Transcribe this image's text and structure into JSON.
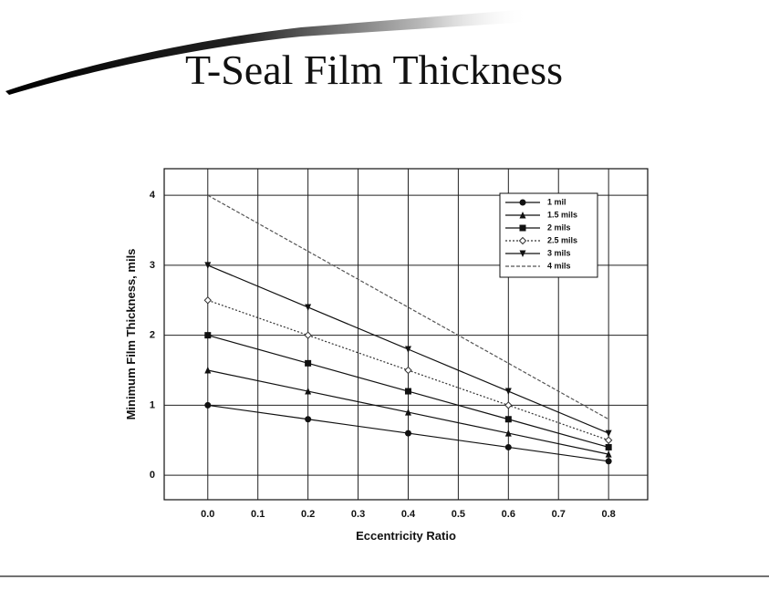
{
  "chart_data": {
    "type": "line",
    "title": "T-Seal Film Thickness",
    "xlabel": "Eccentricity Ratio",
    "ylabel": "Minimum Film Thickness, mils",
    "x": [
      0,
      0.2,
      0.4,
      0.6,
      0.8
    ],
    "series": [
      {
        "name": "1 mil",
        "color": "#111111",
        "marker": "circle",
        "dash": "solid",
        "values": [
          1,
          0.8,
          0.6,
          0.4,
          0.2
        ]
      },
      {
        "name": "1.5 mils",
        "color": "#111111",
        "marker": "triangle-up",
        "dash": "solid",
        "values": [
          1.5,
          1.2,
          0.9,
          0.6,
          0.3
        ]
      },
      {
        "name": "2 mils",
        "color": "#111111",
        "marker": "square",
        "dash": "solid",
        "values": [
          2,
          1.6,
          1.2,
          0.8,
          0.4
        ]
      },
      {
        "name": "2.5 mils",
        "color": "#333333",
        "marker": "diamond",
        "dash": "dotted",
        "values": [
          2.5,
          2,
          1.5,
          1,
          0.5
        ]
      },
      {
        "name": "3 mils",
        "color": "#111111",
        "marker": "triangle-down",
        "dash": "solid",
        "values": [
          3,
          2.4,
          1.8,
          1.2,
          0.6
        ]
      },
      {
        "name": "4 mils",
        "color": "#555555",
        "marker": "none",
        "dash": "dashed",
        "values": [
          4,
          3.2,
          2.4,
          1.6,
          0.8
        ]
      }
    ],
    "xlim": [
      -0.087,
      0.878
    ],
    "ylim": [
      -0.35,
      4.38
    ],
    "xticks": [
      {
        "value": 0,
        "label": "0.0"
      },
      0.1,
      0.2,
      0.3,
      0.4,
      0.5,
      0.6,
      0.7,
      0.8
    ],
    "yticks": [
      0,
      1,
      2,
      3,
      4
    ],
    "grid": true,
    "legend": "upper right"
  }
}
